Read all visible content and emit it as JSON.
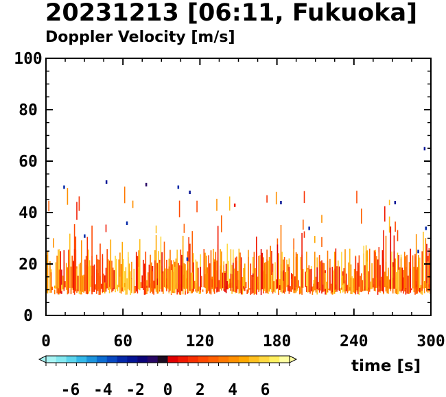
{
  "chart_data": {
    "type": "heatmap",
    "title": "20231213 [06:11, Fukuoka]",
    "subtitle": "Doppler Velocity [m/s]",
    "xlabel": "time [s]",
    "ylabel": "",
    "xlim": [
      0,
      300
    ],
    "ylim": [
      0,
      100
    ],
    "x_ticks": [
      "0",
      "60",
      "120",
      "180",
      "240",
      "300"
    ],
    "y_ticks": [
      "0",
      "20",
      "40",
      "60",
      "80",
      "100"
    ],
    "colorbar": {
      "range": [
        -7.5,
        7.5
      ],
      "ticks": [
        "-6",
        "-4",
        "-2",
        "0",
        "2",
        "4",
        "6"
      ],
      "colors": [
        "#a8f4f4",
        "#84e8f0",
        "#5cd4ec",
        "#34b8e8",
        "#1c94dc",
        "#0c6cd0",
        "#0848c0",
        "#0428a8",
        "#041494",
        "#0c0478",
        "#280864",
        "#1c0c20",
        "#e00000",
        "#f01800",
        "#f83000",
        "#ff4800",
        "#ff6000",
        "#ff7800",
        "#ff9000",
        "#ffa800",
        "#ffc020",
        "#ffd840",
        "#fff060",
        "#ffffa0"
      ]
    },
    "echo_band": {
      "lower_altitude": 8,
      "dense_top_altitude": 20,
      "sparse_top_altitude": 50,
      "velocity_range": [
        0.5,
        6
      ],
      "notes": "Velocity echoes fill roughly 8-20 units over the full 0-300 s window; scattered echoes rise to ~50, isolated points near 65 at ~295 s."
    },
    "isolated_points": [
      {
        "x": 295,
        "y": 65,
        "v": -2
      },
      {
        "x": 47,
        "y": 52,
        "v": -2
      },
      {
        "x": 78,
        "y": 51,
        "v": -1
      },
      {
        "x": 103,
        "y": 50,
        "v": -3
      },
      {
        "x": 112,
        "y": 48,
        "v": -2
      },
      {
        "x": 147,
        "y": 43,
        "v": 1
      },
      {
        "x": 183,
        "y": 44,
        "v": -2
      },
      {
        "x": 272,
        "y": 44,
        "v": -2
      },
      {
        "x": 63,
        "y": 36,
        "v": -3
      },
      {
        "x": 296,
        "y": 34,
        "v": -3
      },
      {
        "x": 205,
        "y": 34,
        "v": -3
      },
      {
        "x": 30,
        "y": 31,
        "v": -3
      },
      {
        "x": 110,
        "y": 22,
        "v": -3
      },
      {
        "x": 290,
        "y": 25,
        "v": -3
      },
      {
        "x": 14,
        "y": 50,
        "v": -3
      }
    ]
  }
}
